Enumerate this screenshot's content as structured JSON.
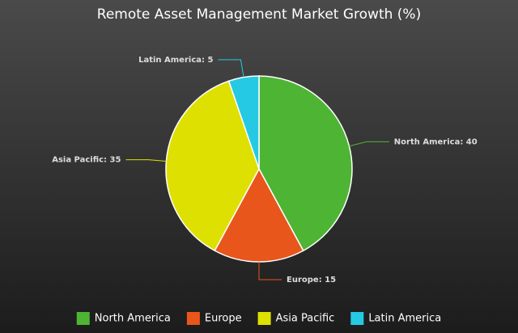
{
  "chart_data": {
    "type": "pie",
    "title": "Remote Asset Management Market Growth (%)",
    "categories": [
      "North America",
      "Europe",
      "Asia Pacific",
      "Latin America"
    ],
    "values": [
      40,
      15,
      35,
      5
    ],
    "value_labels": [
      "North America: 40",
      "Europe: 15",
      "Asia Pacific: 35",
      "Latin America: 5"
    ],
    "colors": [
      "#4db533",
      "#e8561c",
      "#dde000",
      "#26c9e3"
    ],
    "legend": "bottom"
  }
}
